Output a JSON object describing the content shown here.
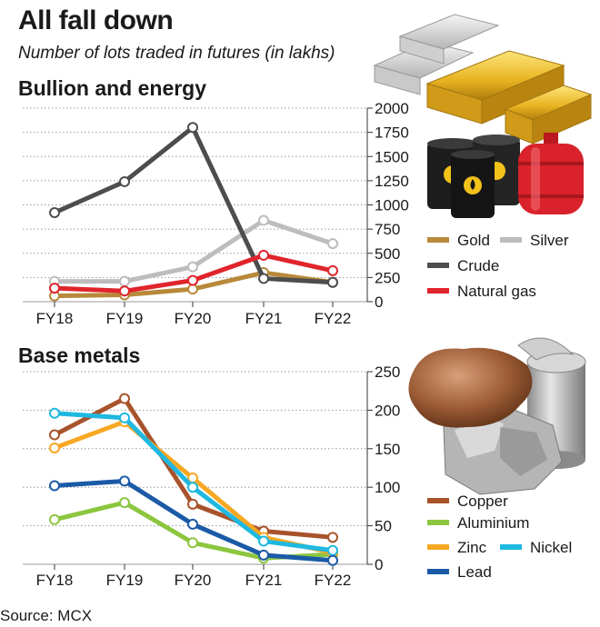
{
  "title": "All fall down",
  "subtitle": "Number of lots traded in futures (in lakhs)",
  "source": "Source: MCX",
  "chart_data": [
    {
      "type": "line",
      "title": "Bullion and energy",
      "categories": [
        "FY18",
        "FY19",
        "FY20",
        "FY21",
        "FY22"
      ],
      "ylim": [
        0,
        2000
      ],
      "yticks": [
        0,
        250,
        500,
        750,
        1000,
        1250,
        1500,
        1750,
        2000
      ],
      "grid": true,
      "legend_position": "right",
      "series": [
        {
          "name": "Gold",
          "color": "#b8893a",
          "values": [
            60,
            70,
            130,
            300,
            200
          ]
        },
        {
          "name": "Silver",
          "color": "#bdbdbd",
          "values": [
            210,
            210,
            360,
            840,
            600
          ]
        },
        {
          "name": "Crude",
          "color": "#4d4d4d",
          "values": [
            920,
            1240,
            1800,
            240,
            200
          ]
        },
        {
          "name": "Natural gas",
          "color": "#e0242c",
          "values": [
            140,
            110,
            220,
            480,
            320
          ]
        }
      ]
    },
    {
      "type": "line",
      "title": "Base metals",
      "categories": [
        "FY18",
        "FY19",
        "FY20",
        "FY21",
        "FY22"
      ],
      "ylim": [
        0,
        250
      ],
      "yticks": [
        0,
        50,
        100,
        150,
        200,
        250
      ],
      "grid": true,
      "legend_position": "right",
      "series": [
        {
          "name": "Copper",
          "color": "#a8532b",
          "values": [
            168,
            215,
            78,
            43,
            35
          ]
        },
        {
          "name": "Aluminium",
          "color": "#8cc63f",
          "values": [
            58,
            80,
            28,
            8,
            13
          ]
        },
        {
          "name": "Zinc",
          "color": "#f7a823",
          "values": [
            151,
            185,
            112,
            35,
            15
          ]
        },
        {
          "name": "Nickel",
          "color": "#1fb8e0",
          "values": [
            196,
            190,
            100,
            30,
            18
          ]
        },
        {
          "name": "Lead",
          "color": "#1b5aa6",
          "values": [
            102,
            108,
            52,
            12,
            5
          ]
        }
      ]
    }
  ]
}
